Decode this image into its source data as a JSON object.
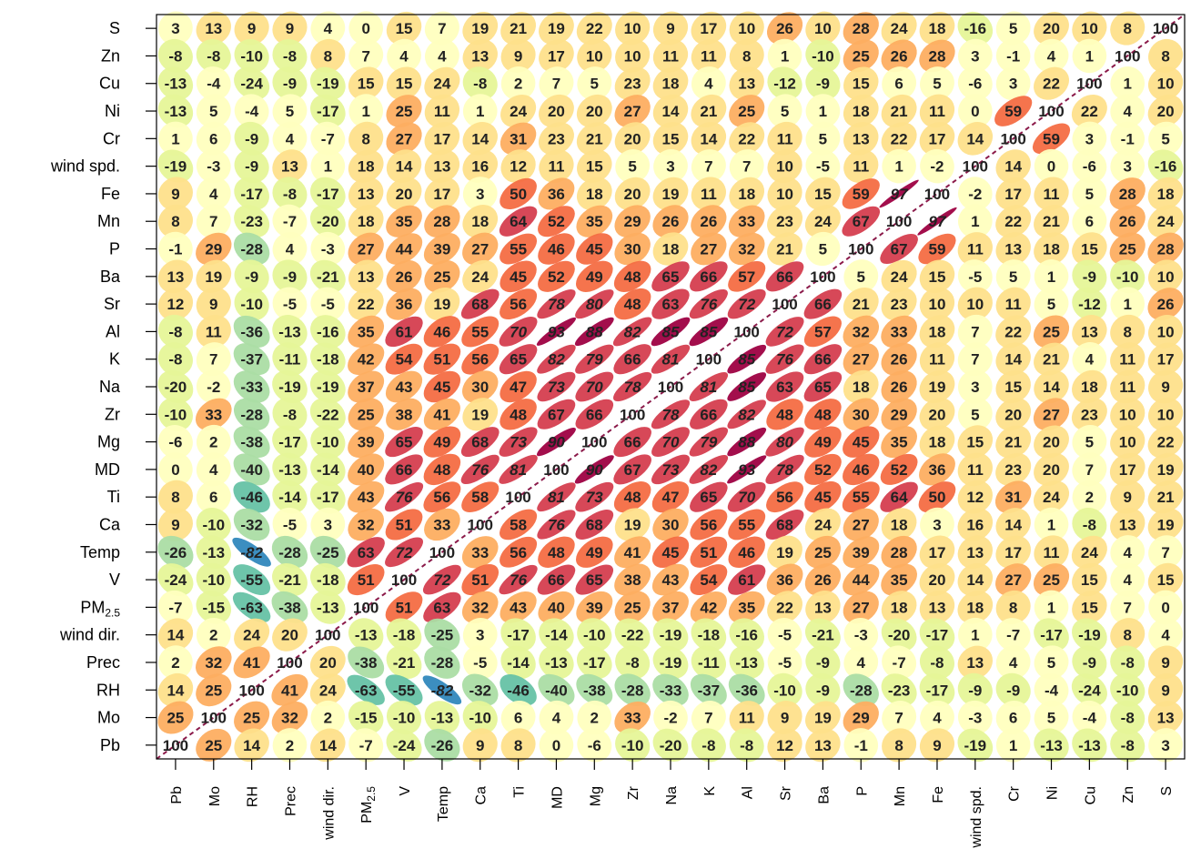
{
  "chart_data": {
    "type": "heatmap",
    "variables": [
      "Pb",
      "Mo",
      "RH",
      "Prec",
      "wind dir.",
      "PM2.5",
      "V",
      "Temp",
      "Ca",
      "Ti",
      "MD",
      "Mg",
      "Zr",
      "Na",
      "K",
      "Al",
      "Sr",
      "Ba",
      "P",
      "Mn",
      "Fe",
      "wind spd.",
      "Cr",
      "Ni",
      "Cu",
      "Zn",
      "S"
    ],
    "row_labels_top_to_bottom": [
      "S",
      "Zn",
      "Cu",
      "Ni",
      "Cr",
      "wind spd.",
      "Fe",
      "Mn",
      "P",
      "Ba",
      "Sr",
      "Al",
      "K",
      "Na",
      "Zr",
      "Mg",
      "MD",
      "Ti",
      "Ca",
      "Temp",
      "V",
      "PM2.5",
      "wind dir.",
      "Prec",
      "RH",
      "Mo",
      "Pb"
    ],
    "column_labels_left_to_right": [
      "Pb",
      "Mo",
      "RH",
      "Prec",
      "wind dir.",
      "PM2.5",
      "V",
      "Temp",
      "Ca",
      "Ti",
      "MD",
      "Mg",
      "Zr",
      "Na",
      "K",
      "Al",
      "Sr",
      "Ba",
      "P",
      "Mn",
      "Fe",
      "wind spd.",
      "Cr",
      "Ni",
      "Cu",
      "Zn",
      "S"
    ],
    "values_rows_top_to_bottom": [
      [
        3,
        13,
        9,
        9,
        4,
        0,
        15,
        7,
        19,
        21,
        19,
        22,
        10,
        9,
        17,
        10,
        26,
        10,
        28,
        24,
        18,
        -16,
        5,
        20,
        10,
        8,
        100
      ],
      [
        -8,
        -8,
        -10,
        -8,
        8,
        7,
        4,
        4,
        13,
        9,
        17,
        10,
        10,
        11,
        11,
        8,
        1,
        -10,
        25,
        26,
        28,
        3,
        -1,
        4,
        1,
        100,
        8
      ],
      [
        -13,
        -4,
        -24,
        -9,
        -19,
        15,
        15,
        24,
        -8,
        2,
        7,
        5,
        23,
        18,
        4,
        13,
        -12,
        -9,
        15,
        6,
        5,
        -6,
        3,
        22,
        100,
        1,
        10
      ],
      [
        -13,
        5,
        -4,
        5,
        -17,
        1,
        25,
        11,
        1,
        24,
        20,
        20,
        27,
        14,
        21,
        25,
        5,
        1,
        18,
        21,
        11,
        0,
        59,
        100,
        22,
        4,
        20
      ],
      [
        1,
        6,
        -9,
        4,
        -7,
        8,
        27,
        17,
        14,
        31,
        23,
        21,
        20,
        15,
        14,
        22,
        11,
        5,
        13,
        22,
        17,
        14,
        100,
        59,
        3,
        -1,
        5
      ],
      [
        -19,
        -3,
        -9,
        13,
        1,
        18,
        14,
        13,
        16,
        12,
        11,
        15,
        5,
        3,
        7,
        7,
        10,
        -5,
        11,
        1,
        -2,
        100,
        14,
        0,
        -6,
        3,
        -16
      ],
      [
        9,
        4,
        -17,
        -8,
        -17,
        13,
        20,
        17,
        3,
        50,
        36,
        18,
        20,
        19,
        11,
        18,
        10,
        15,
        59,
        97,
        100,
        -2,
        17,
        11,
        5,
        28,
        18
      ],
      [
        8,
        7,
        -23,
        -7,
        -20,
        18,
        35,
        28,
        18,
        64,
        52,
        35,
        29,
        26,
        26,
        33,
        23,
        24,
        67,
        100,
        97,
        1,
        22,
        21,
        6,
        26,
        24
      ],
      [
        -1,
        29,
        -28,
        4,
        -3,
        27,
        44,
        39,
        27,
        55,
        46,
        45,
        30,
        18,
        27,
        32,
        21,
        5,
        100,
        67,
        59,
        11,
        13,
        18,
        15,
        25,
        28
      ],
      [
        13,
        19,
        -9,
        -9,
        -21,
        13,
        26,
        25,
        24,
        45,
        52,
        49,
        48,
        65,
        66,
        57,
        66,
        100,
        5,
        24,
        15,
        -5,
        5,
        1,
        -9,
        -10,
        10
      ],
      [
        12,
        9,
        -10,
        -5,
        -5,
        22,
        36,
        19,
        68,
        56,
        78,
        80,
        48,
        63,
        76,
        72,
        100,
        66,
        21,
        23,
        10,
        10,
        11,
        5,
        -12,
        1,
        26
      ],
      [
        -8,
        11,
        -36,
        -13,
        -16,
        35,
        61,
        46,
        55,
        70,
        93,
        88,
        82,
        85,
        85,
        100,
        72,
        57,
        32,
        33,
        18,
        7,
        22,
        25,
        13,
        8,
        10
      ],
      [
        -8,
        7,
        -37,
        -11,
        -18,
        42,
        54,
        51,
        56,
        65,
        82,
        79,
        66,
        81,
        100,
        85,
        76,
        66,
        27,
        26,
        11,
        7,
        14,
        21,
        4,
        11,
        17
      ],
      [
        -20,
        -2,
        -33,
        -19,
        -19,
        37,
        43,
        45,
        30,
        47,
        73,
        70,
        78,
        100,
        81,
        85,
        63,
        65,
        18,
        26,
        19,
        3,
        15,
        14,
        18,
        11,
        9
      ],
      [
        -10,
        33,
        -28,
        -8,
        -22,
        25,
        38,
        41,
        19,
        48,
        67,
        66,
        100,
        78,
        66,
        82,
        48,
        48,
        30,
        29,
        20,
        5,
        20,
        27,
        23,
        10,
        10
      ],
      [
        -6,
        2,
        -38,
        -17,
        -10,
        39,
        65,
        49,
        68,
        73,
        90,
        100,
        66,
        70,
        79,
        88,
        80,
        49,
        45,
        35,
        18,
        15,
        21,
        20,
        5,
        10,
        22
      ],
      [
        0,
        4,
        -40,
        -13,
        -14,
        40,
        66,
        48,
        76,
        81,
        100,
        90,
        67,
        73,
        82,
        93,
        78,
        52,
        46,
        52,
        36,
        11,
        23,
        20,
        7,
        17,
        19
      ],
      [
        8,
        6,
        -46,
        -14,
        -17,
        43,
        76,
        56,
        58,
        100,
        81,
        73,
        48,
        47,
        65,
        70,
        56,
        45,
        55,
        64,
        50,
        12,
        31,
        24,
        2,
        9,
        21
      ],
      [
        9,
        -10,
        -32,
        -5,
        3,
        32,
        51,
        33,
        100,
        58,
        76,
        68,
        19,
        30,
        56,
        55,
        68,
        24,
        27,
        18,
        3,
        16,
        14,
        1,
        -8,
        13,
        19
      ],
      [
        -26,
        -13,
        -82,
        -28,
        -25,
        63,
        72,
        100,
        33,
        56,
        48,
        49,
        41,
        45,
        51,
        46,
        19,
        25,
        39,
        28,
        17,
        13,
        17,
        11,
        24,
        4,
        7
      ],
      [
        -24,
        -10,
        -55,
        -21,
        -18,
        51,
        100,
        72,
        51,
        76,
        66,
        65,
        38,
        43,
        54,
        61,
        36,
        26,
        44,
        35,
        20,
        14,
        27,
        25,
        15,
        4,
        15
      ],
      [
        -7,
        -15,
        -63,
        -38,
        -13,
        100,
        51,
        63,
        32,
        43,
        40,
        39,
        25,
        37,
        42,
        35,
        22,
        13,
        27,
        18,
        13,
        18,
        8,
        1,
        15,
        7,
        0
      ],
      [
        14,
        2,
        24,
        20,
        100,
        -13,
        -18,
        -25,
        3,
        -17,
        -14,
        -10,
        -22,
        -19,
        -18,
        -16,
        -5,
        -21,
        -3,
        -20,
        -17,
        1,
        -7,
        -17,
        -19,
        8,
        4
      ],
      [
        2,
        32,
        41,
        100,
        20,
        -38,
        -21,
        -28,
        -5,
        -14,
        -13,
        -17,
        -8,
        -19,
        -11,
        -13,
        -5,
        -9,
        4,
        -7,
        -8,
        13,
        4,
        5,
        -9,
        -8,
        9
      ],
      [
        14,
        25,
        100,
        41,
        24,
        -63,
        -55,
        -82,
        -32,
        -46,
        -40,
        -38,
        -28,
        -33,
        -37,
        -36,
        -10,
        -9,
        -28,
        -23,
        -17,
        -9,
        -9,
        -4,
        -24,
        -10,
        9
      ],
      [
        25,
        100,
        25,
        32,
        2,
        -15,
        -10,
        -13,
        -10,
        6,
        4,
        2,
        33,
        -2,
        7,
        11,
        9,
        19,
        29,
        7,
        4,
        -3,
        6,
        5,
        -4,
        -8,
        13
      ],
      [
        100,
        25,
        14,
        2,
        14,
        -7,
        -24,
        -26,
        9,
        8,
        0,
        -6,
        -10,
        -20,
        -8,
        -8,
        12,
        13,
        -1,
        8,
        9,
        -19,
        1,
        -13,
        -13,
        -8,
        3
      ]
    ],
    "encoding": "ellipse shape and color by correlation (%)",
    "colors": {
      "strong_positive": "#9e0142",
      "positive_high": "#d53e4f",
      "positive_mid": "#f46d43",
      "positive_low": "#fdae61",
      "weak": "#fee08b",
      "near_zero": "#ffffbf",
      "negative_low": "#e6f598",
      "negative_mid": "#abdda4",
      "negative_high": "#66c2a5",
      "strong_negative": "#3288bd",
      "diagonal_line": "#8b1a4a"
    }
  }
}
